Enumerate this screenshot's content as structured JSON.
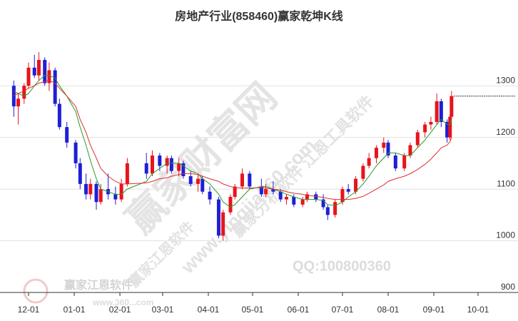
{
  "chart_data": {
    "type": "candlestick",
    "title": "房地产行业(858460)赢家乾坤K线",
    "watermarks": [
      "赢家财富网",
      "赢家分析软件 江恩工具软件",
      "www.yingjia360.com",
      "赢家江恩软件",
      "QQ:100800360",
      "www.360...com"
    ],
    "up_color": "#e8141b",
    "down_color": "#1f1fd6",
    "ylim": [
      900,
      1390
    ],
    "yticks": [
      900,
      1000,
      1100,
      1200,
      1300
    ],
    "grid": true,
    "xticks": [
      "12-01",
      "01-01",
      "02-01",
      "03-01",
      "04-01",
      "05-01",
      "06-01",
      "07-01",
      "08-01",
      "09-01",
      "10-01"
    ],
    "x": [
      "11-21",
      "11-24",
      "11-28",
      "12-01",
      "12-05",
      "12-08",
      "12-12",
      "12-15",
      "12-19",
      "12-22",
      "12-27",
      "01-02",
      "01-05",
      "01-09",
      "01-12",
      "01-16",
      "01-19",
      "01-24",
      "01-29",
      "02-02",
      "02-06",
      "02-19",
      "02-23",
      "02-28",
      "03-04",
      "03-07",
      "03-12",
      "03-15",
      "03-20",
      "03-25",
      "03-28",
      "04-02",
      "04-08",
      "04-11",
      "04-16",
      "04-19",
      "04-24",
      "04-29",
      "05-07",
      "05-10",
      "05-15",
      "05-20",
      "05-24",
      "05-29",
      "06-04",
      "06-07",
      "06-13",
      "06-18",
      "06-21",
      "06-26",
      "07-01",
      "07-05",
      "07-10",
      "07-15",
      "07-19",
      "07-24",
      "07-29",
      "08-01",
      "08-06",
      "08-12",
      "08-16",
      "08-21",
      "08-26",
      "08-30",
      "09-03",
      "09-06",
      "09-10",
      "09-12",
      "09-13"
    ],
    "ohlc": [
      [
        1300,
        1310,
        1240,
        1260
      ],
      [
        1260,
        1285,
        1225,
        1275
      ],
      [
        1275,
        1305,
        1265,
        1300
      ],
      [
        1300,
        1345,
        1295,
        1335
      ],
      [
        1335,
        1360,
        1315,
        1320
      ],
      [
        1320,
        1365,
        1310,
        1350
      ],
      [
        1350,
        1355,
        1300,
        1305
      ],
      [
        1305,
        1345,
        1290,
        1330
      ],
      [
        1330,
        1335,
        1260,
        1265
      ],
      [
        1265,
        1275,
        1215,
        1220
      ],
      [
        1220,
        1230,
        1180,
        1190
      ],
      [
        1190,
        1195,
        1140,
        1150
      ],
      [
        1150,
        1160,
        1100,
        1110
      ],
      [
        1110,
        1130,
        1080,
        1090
      ],
      [
        1090,
        1120,
        1080,
        1110
      ],
      [
        1110,
        1115,
        1060,
        1075
      ],
      [
        1075,
        1110,
        1070,
        1100
      ],
      [
        1100,
        1130,
        1080,
        1090
      ],
      [
        1090,
        1105,
        1070,
        1080
      ],
      [
        1080,
        1120,
        1075,
        1110
      ],
      [
        1110,
        1160,
        1105,
        1150
      ],
      [
        1150,
        1170,
        1120,
        1130
      ],
      [
        1130,
        1175,
        1125,
        1165
      ],
      [
        1165,
        1170,
        1135,
        1145
      ],
      [
        1145,
        1165,
        1130,
        1160
      ],
      [
        1160,
        1165,
        1130,
        1135
      ],
      [
        1135,
        1160,
        1125,
        1150
      ],
      [
        1150,
        1155,
        1120,
        1125
      ],
      [
        1125,
        1135,
        1105,
        1110
      ],
      [
        1110,
        1130,
        1095,
        1120
      ],
      [
        1120,
        1125,
        1090,
        1095
      ],
      [
        1095,
        1105,
        1070,
        1080
      ],
      [
        1080,
        1085,
        1005,
        1010
      ],
      [
        1010,
        1060,
        1000,
        1055
      ],
      [
        1055,
        1090,
        1050,
        1085
      ],
      [
        1085,
        1110,
        1080,
        1105
      ],
      [
        1105,
        1140,
        1100,
        1130
      ],
      [
        1130,
        1135,
        1100,
        1105
      ],
      [
        1105,
        1120,
        1085,
        1090
      ],
      [
        1090,
        1110,
        1085,
        1100
      ],
      [
        1100,
        1115,
        1090,
        1095
      ],
      [
        1095,
        1100,
        1075,
        1080
      ],
      [
        1080,
        1090,
        1070,
        1085
      ],
      [
        1085,
        1090,
        1065,
        1070
      ],
      [
        1070,
        1085,
        1065,
        1080
      ],
      [
        1080,
        1095,
        1075,
        1090
      ],
      [
        1090,
        1095,
        1075,
        1080
      ],
      [
        1080,
        1090,
        1060,
        1065
      ],
      [
        1065,
        1070,
        1040,
        1050
      ],
      [
        1050,
        1080,
        1045,
        1075
      ],
      [
        1075,
        1105,
        1070,
        1100
      ],
      [
        1100,
        1110,
        1090,
        1095
      ],
      [
        1095,
        1125,
        1090,
        1120
      ],
      [
        1120,
        1150,
        1115,
        1145
      ],
      [
        1145,
        1170,
        1140,
        1160
      ],
      [
        1160,
        1185,
        1150,
        1180
      ],
      [
        1180,
        1200,
        1170,
        1190
      ],
      [
        1190,
        1195,
        1160,
        1165
      ],
      [
        1165,
        1170,
        1135,
        1140
      ],
      [
        1140,
        1170,
        1135,
        1165
      ],
      [
        1165,
        1190,
        1160,
        1185
      ],
      [
        1185,
        1215,
        1180,
        1210
      ],
      [
        1210,
        1230,
        1200,
        1225
      ],
      [
        1225,
        1240,
        1215,
        1230
      ],
      [
        1230,
        1285,
        1225,
        1270
      ],
      [
        1270,
        1275,
        1220,
        1230
      ],
      [
        1230,
        1235,
        1190,
        1200
      ],
      [
        1200,
        1245,
        1195,
        1240
      ],
      [
        1240,
        1290,
        1235,
        1280
      ]
    ],
    "ma_lines": [
      {
        "color": "#2a9a2a",
        "values": [
          1290,
          1285,
          1280,
          1285,
          1300,
          1310,
          1320,
          1320,
          1315,
          1300,
          1280,
          1250,
          1220,
          1185,
          1155,
          1120,
          1100,
          1095,
          1090,
          1090,
          1100,
          1115,
          1130,
          1140,
          1150,
          1150,
          1150,
          1145,
          1135,
          1130,
          1120,
          1110,
          1090,
          1075,
          1065,
          1070,
          1085,
          1100,
          1105,
          1105,
          1100,
          1095,
          1090,
          1085,
          1080,
          1080,
          1080,
          1078,
          1070,
          1068,
          1075,
          1085,
          1095,
          1110,
          1125,
          1145,
          1160,
          1170,
          1170,
          1165,
          1165,
          1180,
          1195,
          1210,
          1225,
          1235,
          1225,
          1225,
          1235
        ]
      },
      {
        "color": "#e03030",
        "values": [
          1280,
          1285,
          1290,
          1295,
          1300,
          1305,
          1308,
          1310,
          1305,
          1295,
          1280,
          1260,
          1235,
          1210,
          1185,
          1160,
          1140,
          1125,
          1115,
          1110,
          1110,
          1112,
          1115,
          1120,
          1122,
          1125,
          1128,
          1130,
          1130,
          1128,
          1125,
          1120,
          1115,
          1110,
          1105,
          1103,
          1102,
          1102,
          1103,
          1102,
          1100,
          1098,
          1095,
          1092,
          1090,
          1088,
          1086,
          1084,
          1082,
          1080,
          1080,
          1080,
          1082,
          1086,
          1092,
          1100,
          1108,
          1115,
          1120,
          1125,
          1130,
          1138,
          1148,
          1158,
          1170,
          1180,
          1185,
          1192,
          1200
        ]
      }
    ]
  }
}
